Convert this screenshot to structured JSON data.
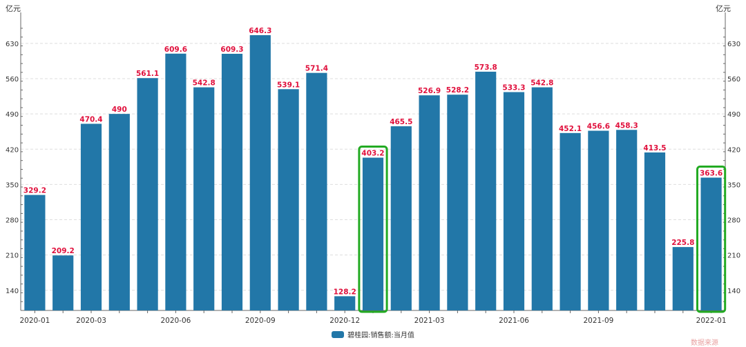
{
  "chart_data": {
    "type": "bar",
    "unit_left": "亿元",
    "unit_right": "亿元",
    "categories": [
      "2020-01",
      "2020-02",
      "2020-03",
      "2020-04",
      "2020-05",
      "2020-06",
      "2020-07",
      "2020-08",
      "2020-09",
      "2020-10",
      "2020-11",
      "2020-12",
      "2021-01",
      "2021-02",
      "2021-03",
      "2021-04",
      "2021-05",
      "2021-06",
      "2021-07",
      "2021-08",
      "2021-09",
      "2021-10",
      "2021-11",
      "2021-12",
      "2022-01"
    ],
    "x_tick_labels": [
      "2020-01",
      "",
      "2020-03",
      "",
      "",
      "2020-06",
      "",
      "",
      "2020-09",
      "",
      "",
      "2020-12",
      "",
      "",
      "2021-03",
      "",
      "",
      "2021-06",
      "",
      "",
      "2021-09",
      "",
      "",
      "",
      "2022-01"
    ],
    "series": [
      {
        "name": "碧桂园:销售额:当月值",
        "values": [
          329.2,
          209.2,
          470.4,
          490,
          561.1,
          609.6,
          542.8,
          609.3,
          646.3,
          539.1,
          571.4,
          128.2,
          403.2,
          465.5,
          526.9,
          528.2,
          573.8,
          533.3,
          542.8,
          452.1,
          456.6,
          458.3,
          413.5,
          225.8,
          363.6
        ],
        "labels": [
          "329.2",
          "209.2",
          "470.4",
          "490",
          "561.1",
          "609.6",
          "542.8",
          "609.3",
          "646.3",
          "539.1",
          "571.4",
          "128.2",
          "403.2",
          "465.5",
          "526.9",
          "528.2",
          "573.8",
          "533.3",
          "542.8",
          "452.1",
          "456.6",
          "458.3",
          "413.5",
          "225.8",
          "363.6"
        ]
      }
    ],
    "y_ticks": [
      140,
      210,
      280,
      350,
      420,
      490,
      560,
      630
    ],
    "ylim": [
      100,
      675
    ],
    "highlighted_categories": [
      "2021-01",
      "2022-01"
    ],
    "grid": true,
    "legend_position": "bottom",
    "colors": {
      "bar": "#2277a8",
      "label": "#e0103c",
      "highlight": "#22aa22",
      "grid": "#dddddd",
      "axis": "#666666"
    }
  },
  "watermark": "数据来源"
}
